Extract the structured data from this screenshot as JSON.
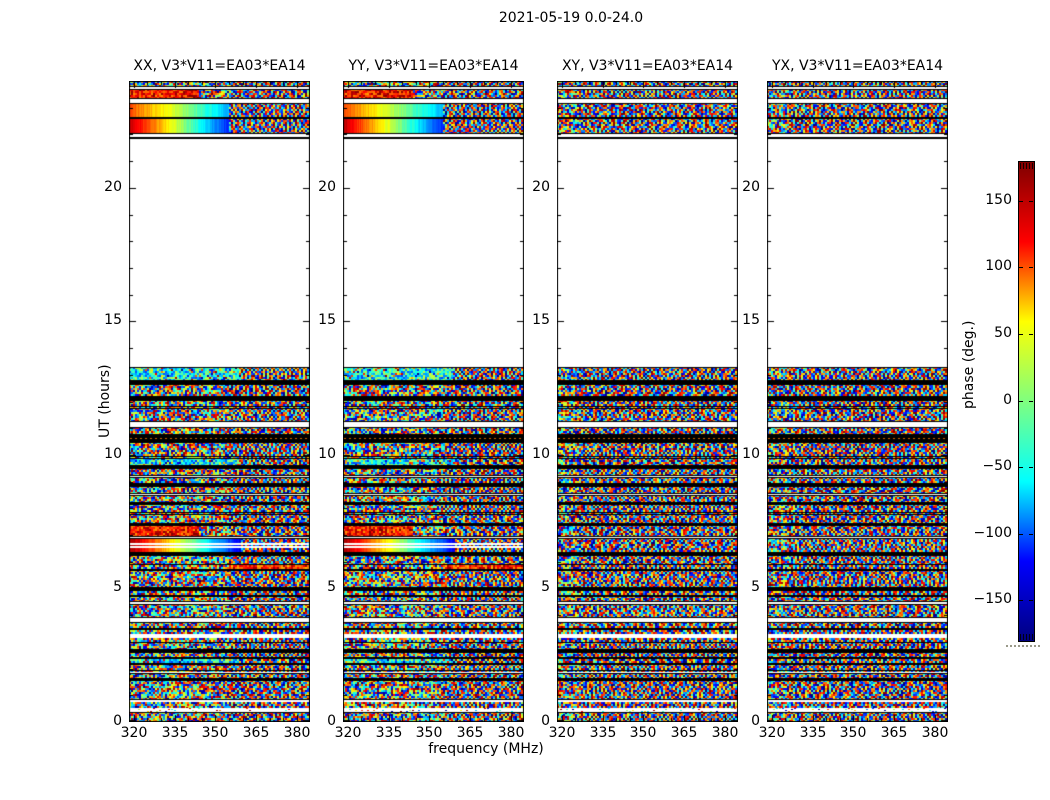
{
  "figure": {
    "title": "2021-05-19 0.0-24.0",
    "background": "#ffffff"
  },
  "chart_data": {
    "type": "heatmap",
    "title": "2021-05-19 0.0-24.0",
    "baseline": "V3*V11=EA03*EA14",
    "xlabel": "frequency (MHz)",
    "ylabel": "UT (hours)",
    "x_ticks": [
      320,
      335,
      350,
      365,
      380
    ],
    "x_minor_step": 5,
    "y_ticks": [
      0,
      5,
      10,
      15,
      20
    ],
    "x_range": [
      318.2,
      384.8
    ],
    "y_range": [
      0,
      24
    ],
    "grid": false,
    "colormap": "jet",
    "panels": [
      {
        "pol": "XX",
        "label": "XX, V3*V11=EA03*EA14",
        "style": "parallel"
      },
      {
        "pol": "YY",
        "label": "YY, V3*V11=EA03*EA14",
        "style": "parallel"
      },
      {
        "pol": "XY",
        "label": "XY, V3*V11=EA03*EA14",
        "style": "cross"
      },
      {
        "pol": "YX",
        "label": "YX, V3*V11=EA03*EA14",
        "style": "cross"
      }
    ],
    "colorbar": {
      "label": "phase (deg.)",
      "ticks": [
        150,
        100,
        50,
        0,
        -50,
        -100,
        -150
      ],
      "range": [
        -180,
        180
      ],
      "colors": [
        "#00007f",
        "#0000ff",
        "#00ffff",
        "#7fff7f",
        "#ffff00",
        "#ff0000",
        "#7f0000"
      ]
    },
    "bands": [
      [
        23.78,
        24.0,
        "noise"
      ],
      [
        23.7,
        23.78,
        "gap"
      ],
      [
        23.33,
        23.7,
        "noise-warm-left"
      ],
      [
        23.18,
        23.33,
        "gap"
      ],
      [
        22.62,
        23.18,
        "smooth",
        0.8,
        0.3,
        0.55
      ],
      [
        22.02,
        22.62,
        "smooth",
        0.95,
        0.15,
        0.55
      ],
      [
        21.83,
        21.9,
        "line"
      ],
      [
        13.29,
        21.83,
        "gap"
      ],
      [
        12.77,
        13.29,
        "noise-cool"
      ],
      [
        12.66,
        12.77,
        "line"
      ],
      [
        12.17,
        12.66,
        "noise"
      ],
      [
        12.06,
        12.17,
        "line"
      ],
      [
        11.8,
        12.06,
        "noise"
      ],
      [
        11.76,
        11.8,
        "gap"
      ],
      [
        11.24,
        11.76,
        "noise"
      ],
      [
        11.05,
        11.24,
        "gap"
      ],
      [
        10.75,
        11.05,
        "noise"
      ],
      [
        10.49,
        10.75,
        "thick-line"
      ],
      [
        9.92,
        10.49,
        "noise"
      ],
      [
        9.89,
        9.92,
        "gap"
      ],
      [
        9.59,
        9.89,
        "noise-cool"
      ],
      [
        9.51,
        9.59,
        "line"
      ],
      [
        9.21,
        9.51,
        "noise"
      ],
      [
        9.17,
        9.21,
        "gap"
      ],
      [
        8.91,
        9.17,
        "noise"
      ],
      [
        8.84,
        8.91,
        "line"
      ],
      [
        8.54,
        8.84,
        "noise"
      ],
      [
        8.5,
        8.54,
        "gap"
      ],
      [
        8.2,
        8.5,
        "noise"
      ],
      [
        8.16,
        8.2,
        "line"
      ],
      [
        7.82,
        8.16,
        "noise"
      ],
      [
        7.79,
        7.82,
        "gap"
      ],
      [
        7.41,
        7.79,
        "noise"
      ],
      [
        7.38,
        7.41,
        "line"
      ],
      [
        6.93,
        7.38,
        "noise-warm-left"
      ],
      [
        6.89,
        6.93,
        "gap"
      ],
      [
        6.33,
        6.89,
        "smooth",
        0.98,
        0.1,
        0.62,
        [
          0.3,
          0.55
        ]
      ],
      [
        6.25,
        6.33,
        "line"
      ],
      [
        5.88,
        6.25,
        "noise"
      ],
      [
        5.73,
        5.88,
        "noise-warm-right"
      ],
      [
        5.69,
        5.73,
        "line"
      ],
      [
        5.02,
        5.69,
        "noise"
      ],
      [
        4.91,
        5.02,
        "line"
      ],
      [
        4.76,
        4.91,
        "noise"
      ],
      [
        4.72,
        4.76,
        "line"
      ],
      [
        4.49,
        4.72,
        "noise"
      ],
      [
        4.42,
        4.49,
        "gap"
      ],
      [
        3.89,
        4.42,
        "noise"
      ],
      [
        3.74,
        3.89,
        "gap"
      ],
      [
        3.48,
        3.74,
        "noise"
      ],
      [
        3.44,
        3.48,
        "line"
      ],
      [
        3.29,
        3.44,
        "noise"
      ],
      [
        3.15,
        3.29,
        "gap"
      ],
      [
        3.03,
        3.15,
        "noise"
      ],
      [
        3.0,
        3.03,
        "gap"
      ],
      [
        2.7,
        3.0,
        "noise"
      ],
      [
        2.62,
        2.7,
        "line"
      ],
      [
        2.4,
        2.62,
        "noise"
      ],
      [
        2.36,
        2.4,
        "line"
      ],
      [
        2.21,
        2.36,
        "noise-cool"
      ],
      [
        2.17,
        2.21,
        "line"
      ],
      [
        1.91,
        2.17,
        "noise"
      ],
      [
        1.83,
        1.91,
        "gap"
      ],
      [
        1.61,
        1.83,
        "noise"
      ],
      [
        1.57,
        1.61,
        "line"
      ],
      [
        0.82,
        1.57,
        "noise"
      ],
      [
        0.75,
        0.82,
        "gap"
      ],
      [
        0.56,
        0.75,
        "noise"
      ],
      [
        0.37,
        0.56,
        "dots"
      ],
      [
        0.0,
        0.37,
        "noise"
      ]
    ]
  }
}
